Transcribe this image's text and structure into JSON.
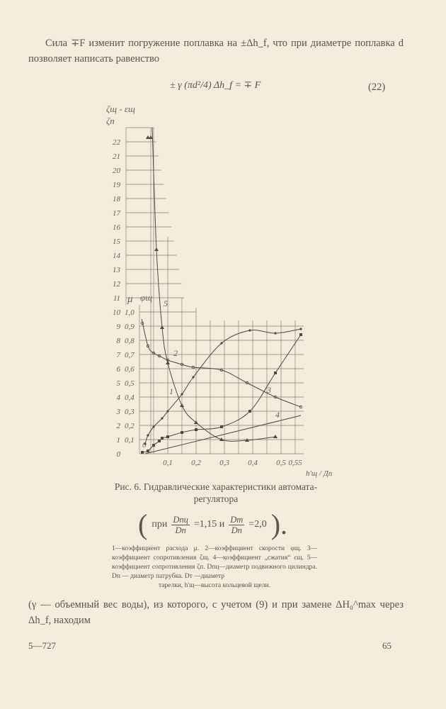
{
  "text": {
    "para1": "Сила ∓F изменит погружение поплавка на ±Δh_f, что при диаметре поплавка d позволяет написать равенство",
    "formula": "± γ (πd²/4) Δh_f = ∓ F",
    "equation_number": "(22)",
    "para2": "(γ — объемный вес воды), из которого, с учетом (9) и при замене ΔH₀^max через Δh_f, находим"
  },
  "caption": {
    "title": "Рис. 6. Гидравлические характеристики автомата-регулятора",
    "cond_prefix": "при",
    "frac1_num": "Dпц",
    "frac1_den": "Dп",
    "frac1_val": "=1,15 и",
    "frac2_num": "Dт",
    "frac2_den": "Dп",
    "frac2_val": "=2,0",
    "cond_end": ").",
    "legend": "1—коэффициент расхода μ. 2—коэффициент скорости φщ. 3—коэффициент сопротивления ζщ. 4—коэффициент „сжатия“ εщ. 5—коэффициент сопротивления ζп. Dпц—диаметр подвижного цилиндра. Dп — диаметр патрубка. Dт —диаметр",
    "legend_end": "тарелки, h'щ—высота кольцевой щели."
  },
  "footer": {
    "left": "5—727",
    "right": "65"
  },
  "chart_data": {
    "type": "line",
    "ylabel_left": "ζщ - εщ",
    "ylabel_left2": "ζп",
    "ylabel_mu": "μ",
    "ylabel_phi": "φщ",
    "xlabel": "h'щ / Дп",
    "xlim": [
      0,
      0.58
    ],
    "ylim_left": [
      0,
      23
    ],
    "ylim_right": [
      0,
      1.0
    ],
    "grid": true,
    "x_ticks": [
      {
        "v": 0.1,
        "label": "0,1"
      },
      {
        "v": 0.2,
        "label": "0,2"
      },
      {
        "v": 0.3,
        "label": "0,3"
      },
      {
        "v": 0.4,
        "label": "0,4"
      },
      {
        "v": 0.5,
        "label": "0,5"
      },
      {
        "v": 0.55,
        "label": "0,55"
      }
    ],
    "y_ticks_left": [
      "0",
      "1",
      "2",
      "3",
      "4",
      "5",
      "6",
      "7",
      "8",
      "9",
      "10",
      "11",
      "12",
      "13",
      "14",
      "15",
      "16",
      "17",
      "18",
      "19",
      "20",
      "21",
      "22"
    ],
    "y_ticks_right": [
      "0,1",
      "0,2",
      "0,3",
      "0,4",
      "0,5",
      "0,6",
      "0,7",
      "0,8",
      "0,9",
      "1,0"
    ],
    "origin_label": "0",
    "series": [
      {
        "name": "1",
        "scale": "right",
        "marker": "dot",
        "x": [
          0.02,
          0.03,
          0.05,
          0.08,
          0.1,
          0.15,
          0.19,
          0.29,
          0.39,
          0.48,
          0.57
        ],
        "y": [
          0.07,
          0.13,
          0.19,
          0.25,
          0.3,
          0.42,
          0.54,
          0.78,
          0.87,
          0.85,
          0.88
        ]
      },
      {
        "name": "2",
        "scale": "right",
        "marker": "circle",
        "x": [
          0.01,
          0.03,
          0.05,
          0.07,
          0.1,
          0.15,
          0.19,
          0.29,
          0.38,
          0.48,
          0.57
        ],
        "y": [
          0.92,
          0.76,
          0.71,
          0.69,
          0.66,
          0.63,
          0.61,
          0.59,
          0.5,
          0.4,
          0.33
        ]
      },
      {
        "name": "3",
        "scale": "left",
        "marker": "square",
        "x": [
          0.01,
          0.03,
          0.05,
          0.07,
          0.08,
          0.1,
          0.15,
          0.2,
          0.29,
          0.39,
          0.48,
          0.57
        ],
        "y": [
          0.1,
          0.2,
          0.6,
          0.9,
          1.1,
          1.2,
          1.5,
          1.7,
          1.9,
          3.0,
          5.7,
          8.4
        ]
      },
      {
        "name": "4",
        "scale": "left",
        "marker": "none",
        "x": [
          0.02,
          0.57
        ],
        "y": [
          0,
          2.7
        ]
      },
      {
        "name": "5",
        "scale": "left",
        "marker": "triangle",
        "x": [
          0.03,
          0.04,
          0.06,
          0.08,
          0.1,
          0.15,
          0.2,
          0.29,
          0.38,
          0.48
        ],
        "y": [
          22.3,
          22.3,
          14.4,
          8.9,
          6.4,
          3.4,
          2.2,
          1.0,
          0.95,
          1.2
        ]
      }
    ]
  }
}
